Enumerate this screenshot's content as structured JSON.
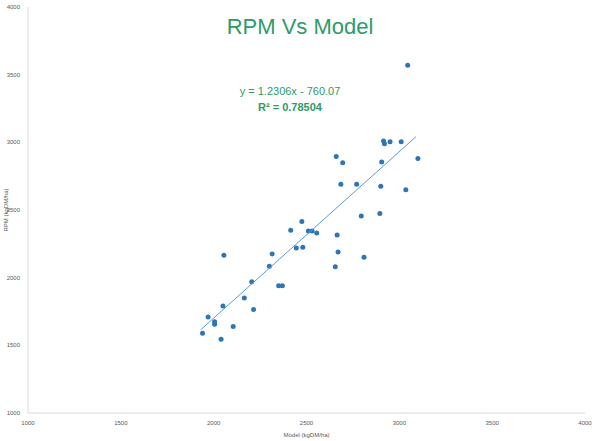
{
  "chart_data": {
    "type": "scatter",
    "title": "RPM Vs Model",
    "x_label": "Model (kgDM/ha)",
    "y_label": "RPM (kgDM/ha)",
    "annotations": [
      "y = 1.2306x - 760.07",
      "R² = 0.78504"
    ],
    "xlim": [
      1000,
      4000
    ],
    "xticks": [
      1000,
      1500,
      2000,
      2500,
      3000,
      3500,
      4000
    ],
    "ylim": [
      1000,
      4000
    ],
    "yticks": [
      1000,
      1500,
      2000,
      2500,
      3000,
      3500,
      4000
    ],
    "grid": false,
    "series": [
      {
        "type": "scatter",
        "marker": "circle",
        "color": "#2e75b6",
        "x": [
          1940,
          1970,
          2005,
          2005,
          2040,
          2050,
          2055,
          2105,
          2165,
          2205,
          2215,
          2300,
          2315,
          2350,
          2370,
          2415,
          2445,
          2475,
          2480,
          2510,
          2530,
          2555,
          2655,
          2665,
          2660,
          2670,
          2695,
          2685,
          2770,
          2795,
          2810,
          2895,
          2900,
          2905,
          2915,
          2920,
          2950,
          3010,
          3035,
          3045,
          3100
        ],
        "values": [
          1590,
          1710,
          1675,
          1655,
          1545,
          1790,
          2165,
          1640,
          1850,
          1970,
          1765,
          2085,
          2175,
          1940,
          1940,
          2350,
          2220,
          2415,
          2225,
          2345,
          2345,
          2330,
          2080,
          2315,
          2895,
          2190,
          2850,
          2690,
          2690,
          2455,
          2150,
          2475,
          2675,
          2855,
          3010,
          2990,
          3005,
          3005,
          2650,
          3570,
          2880
        ]
      },
      {
        "type": "line",
        "line_style": "solid",
        "color": "#5b9bd5",
        "x": [
          1930,
          3090
        ],
        "values": [
          1615,
          3042
        ]
      }
    ]
  }
}
